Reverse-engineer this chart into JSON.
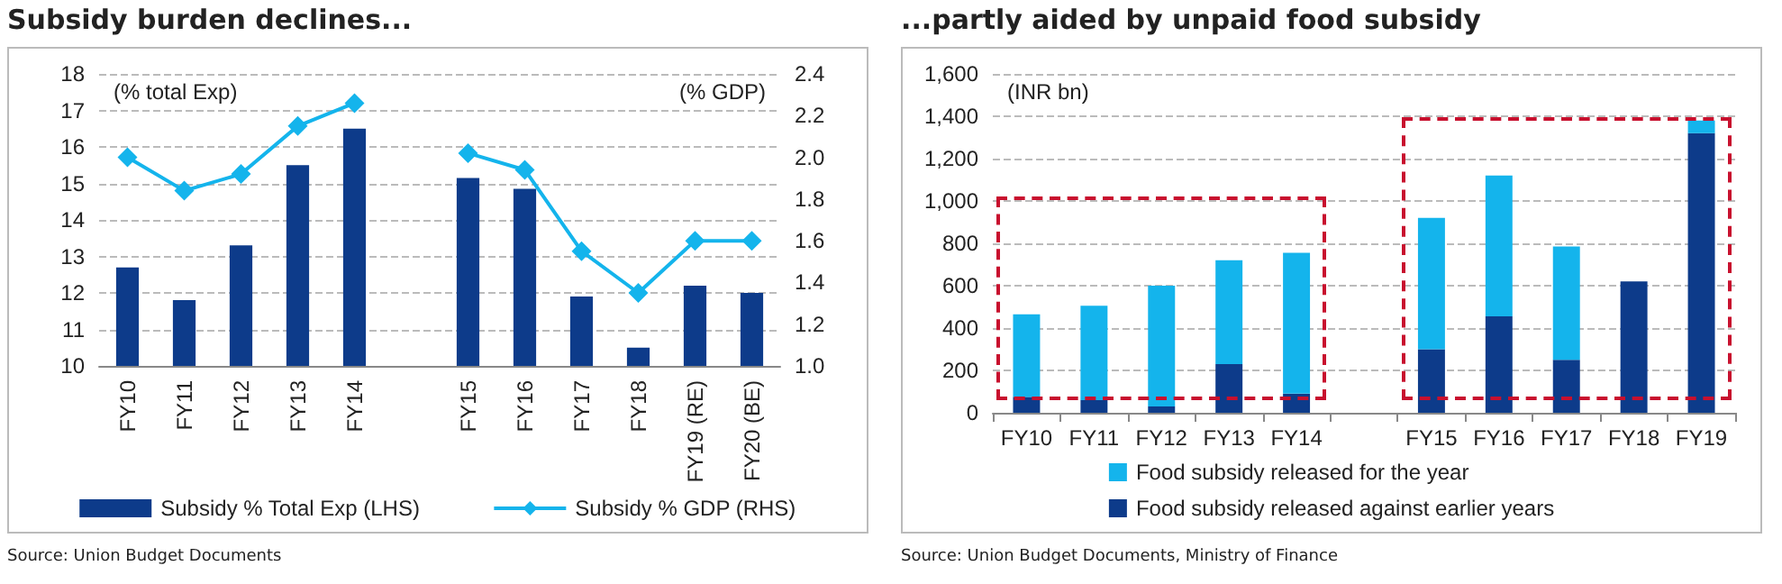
{
  "chart_data": [
    {
      "type": "bar",
      "title": "Subsidy burden declines...",
      "ylabel": "(% total Exp)",
      "y2label": "(% GDP)",
      "categories": [
        "FY10",
        "FY11",
        "FY12",
        "FY13",
        "FY14",
        null,
        "FY15",
        "FY16",
        "FY17",
        "FY18",
        "FY19 (RE)",
        "FY20 (BE)"
      ],
      "series": [
        {
          "name": "Subsidy % Total Exp (LHS)",
          "color": "#0d3b8a",
          "values": [
            12.7,
            11.8,
            13.3,
            15.5,
            16.5,
            null,
            15.15,
            14.85,
            11.9,
            10.5,
            12.2,
            12.0
          ]
        },
        {
          "name": "Subsidy % GDP (RHS)",
          "type": "line",
          "axis": "y2",
          "color": "#14b4ec",
          "values": [
            2.0,
            1.84,
            1.92,
            2.15,
            2.26,
            null,
            2.02,
            1.94,
            1.55,
            1.35,
            1.6,
            1.6
          ]
        }
      ],
      "ylim": [
        10,
        18
      ],
      "yticks": [
        10,
        11,
        12,
        13,
        14,
        15,
        16,
        17,
        18
      ],
      "y2lim": [
        1.0,
        2.4
      ],
      "y2ticks": [
        {
          "value": 1.0,
          "label": "1.0"
        },
        {
          "value": 1.2,
          "label": "1.2"
        },
        {
          "value": 1.4,
          "label": "1.4"
        },
        {
          "value": 1.6,
          "label": "1.6"
        },
        {
          "value": 1.8,
          "label": "1.8"
        },
        {
          "value": 2.0,
          "label": "2.0"
        },
        {
          "value": 2.2,
          "label": "2.2"
        },
        {
          "value": 2.4,
          "label": "2.4"
        }
      ],
      "grid": "y",
      "legend": "bottom",
      "marker": "diamond",
      "line_style": "solid",
      "annotations": [
        "Source: Union Budget Documents"
      ]
    },
    {
      "type": "bar",
      "title": "...partly aided by unpaid food subsidy",
      "ylabel": "(INR bn)",
      "categories": [
        "FY10",
        "FY11",
        "FY12",
        "FY13",
        "FY14",
        null,
        "FY15",
        "FY16",
        "FY17",
        "FY18",
        "FY19"
      ],
      "stacked": true,
      "series": [
        {
          "name": "Food subsidy released against earlier years",
          "color": "#0d3b8a",
          "values": [
            75,
            60,
            30,
            230,
            90,
            null,
            300,
            455,
            250,
            620,
            1320
          ]
        },
        {
          "name": "Food subsidy released for the year",
          "color": "#14b4ec",
          "values": [
            390,
            445,
            570,
            490,
            665,
            null,
            620,
            665,
            535,
            0,
            60
          ]
        }
      ],
      "ylim": [
        0,
        1600
      ],
      "yticks": [
        {
          "value": 0,
          "label": "0"
        },
        {
          "value": 200,
          "label": "200"
        },
        {
          "value": 400,
          "label": "400"
        },
        {
          "value": 600,
          "label": "600"
        },
        {
          "value": 800,
          "label": "800"
        },
        {
          "value": 1000,
          "label": "1,000"
        },
        {
          "value": 1200,
          "label": "1,200"
        },
        {
          "value": 1400,
          "label": "1,400"
        },
        {
          "value": 1600,
          "label": "1,600"
        }
      ],
      "grid": "y",
      "legend": "bottom",
      "annotations": [
        "Source: Union Budget Documents, Ministry of Finance"
      ]
    }
  ]
}
